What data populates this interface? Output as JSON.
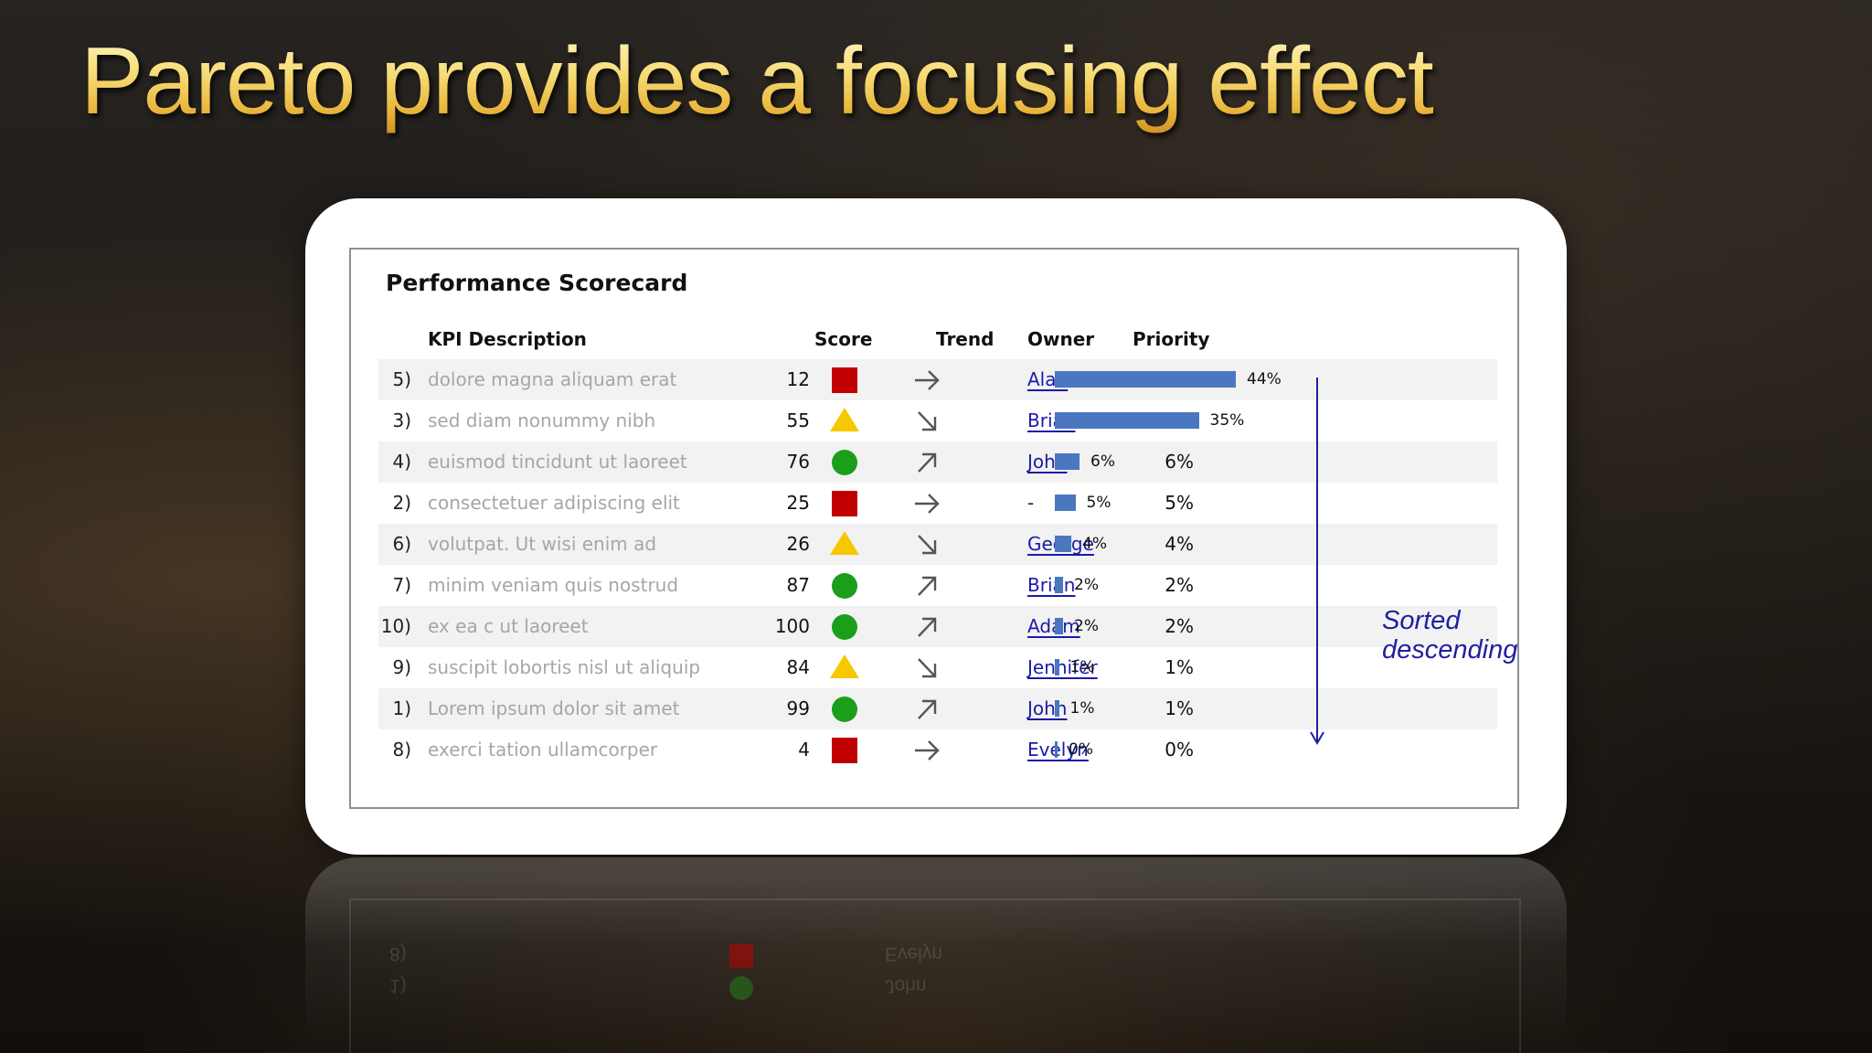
{
  "slide": {
    "title": "Pareto provides a focusing effect"
  },
  "scorecard": {
    "title": "Performance Scorecard",
    "headers": {
      "kpi": "KPI Description",
      "score": "Score",
      "trend": "Trend",
      "owner": "Owner",
      "priority": "Priority"
    },
    "note": "Sorted descending",
    "rows": [
      {
        "num": "5)",
        "desc": "dolore magna aliquam erat",
        "score": "12",
        "indicator": "red-square",
        "trend": "right-arrow",
        "owner": "Alan",
        "priority": "44%",
        "bar_label": "44%",
        "bar_value": 44
      },
      {
        "num": "3)",
        "desc": "sed diam nonummy nibh",
        "score": "55",
        "indicator": "yellow-triangle",
        "trend": "down-right-arrow",
        "owner": "Brian",
        "priority": "35%",
        "bar_label": "35%",
        "bar_value": 35
      },
      {
        "num": "4)",
        "desc": "euismod tincidunt ut laoreet",
        "score": "76",
        "indicator": "green-circle",
        "trend": "up-right-arrow",
        "owner": "John",
        "priority": "6%",
        "bar_label": "6%",
        "bar_value": 6
      },
      {
        "num": "2)",
        "desc": "consectetuer adipiscing elit",
        "score": "25",
        "indicator": "red-square",
        "trend": "right-arrow",
        "owner": "-",
        "priority": "5%",
        "bar_label": "5%",
        "bar_value": 5
      },
      {
        "num": "6)",
        "desc": "volutpat. Ut wisi enim ad",
        "score": "26",
        "indicator": "yellow-triangle",
        "trend": "down-right-arrow",
        "owner": "George",
        "priority": "4%",
        "bar_label": "4%",
        "bar_value": 4
      },
      {
        "num": "7)",
        "desc": "minim veniam quis nostrud",
        "score": "87",
        "indicator": "green-circle",
        "trend": "up-right-arrow",
        "owner": "Brian",
        "priority": "2%",
        "bar_label": "2%",
        "bar_value": 2
      },
      {
        "num": "10)",
        "desc": "ex ea c ut laoreet",
        "score": "100",
        "indicator": "green-circle",
        "trend": "up-right-arrow",
        "owner": "Adam",
        "priority": "2%",
        "bar_label": "2%",
        "bar_value": 2
      },
      {
        "num": "9)",
        "desc": "suscipit lobortis nisl ut aliquip",
        "score": "84",
        "indicator": "yellow-triangle",
        "trend": "down-right-arrow",
        "owner": "Jennifer",
        "priority": "1%",
        "bar_label": "1%",
        "bar_value": 1
      },
      {
        "num": "1)",
        "desc": "Lorem ipsum dolor sit amet",
        "score": "99",
        "indicator": "green-circle",
        "trend": "up-right-arrow",
        "owner": "John",
        "priority": "1%",
        "bar_label": "1%",
        "bar_value": 1
      },
      {
        "num": "8)",
        "desc": "exerci tation ullamcorper",
        "score": "4",
        "indicator": "red-square",
        "trend": "right-arrow",
        "owner": "Evelyn",
        "priority": "0%",
        "bar_label": "0%",
        "bar_value": 0
      }
    ]
  },
  "colors": {
    "bar": "#4a77c0",
    "status_red": "#c00000",
    "status_yellow": "#f6c800",
    "status_green": "#1b9f1b",
    "link": "#1a1aa8",
    "title_gold": "#f2cf5b",
    "note_blue": "#1f1fa0"
  }
}
